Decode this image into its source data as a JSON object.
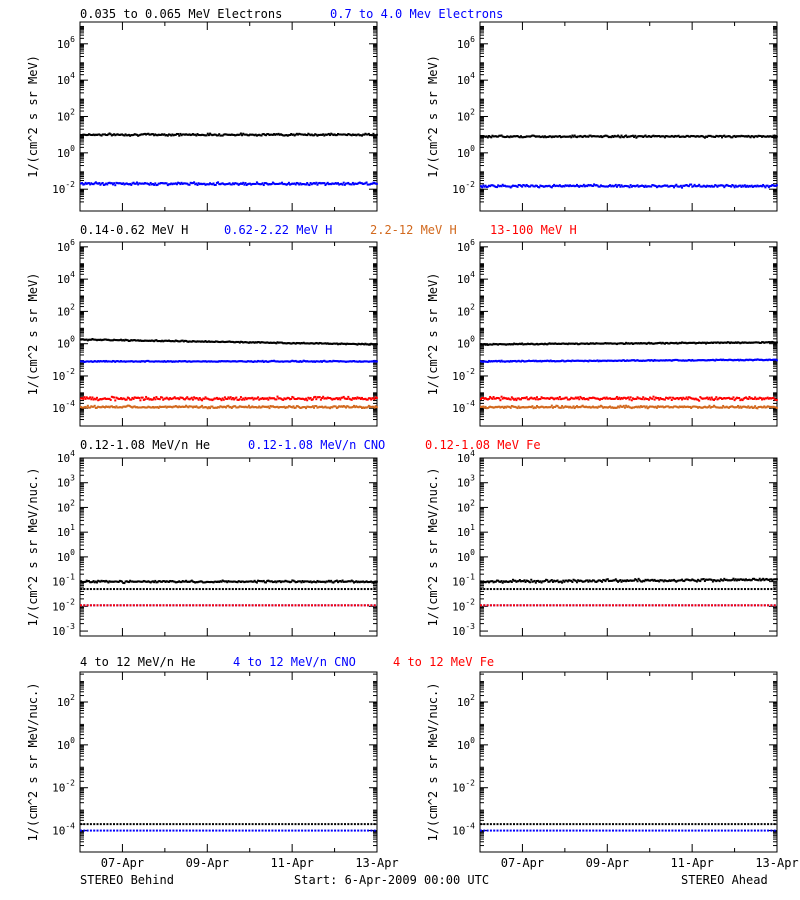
{
  "colors": {
    "black": "#000000",
    "blue": "#0000ff",
    "red": "#ff0000",
    "tan": "#d2691e"
  },
  "footer": {
    "left": "STEREO Behind",
    "center": "Start:  6-Apr-2009 00:00 UTC",
    "right": "STEREO Ahead"
  },
  "chart_data": [
    {
      "type": "scatter",
      "row": 1,
      "legend": [
        {
          "text": "0.035 to 0.065 MeV Electrons",
          "color": "#000000"
        },
        {
          "text": "0.7 to 4.0 Mev Electrons",
          "color": "#0000ff"
        }
      ],
      "ylabel": "1/(cm^2 s sr MeV)",
      "y_scale": "log",
      "y_ticks": [
        -2,
        0,
        2,
        4,
        6
      ],
      "ylim": [
        -3.2,
        7.2
      ],
      "x_ticks": [
        "07-Apr",
        "09-Apr",
        "11-Apr",
        "13-Apr"
      ],
      "x_days": [
        1,
        3,
        5,
        7
      ],
      "xlim_days": [
        0,
        7
      ],
      "series": {
        "behind": [
          {
            "color": "#000000",
            "start": 10.0,
            "end": 10.0,
            "spread": 0.08
          },
          {
            "color": "#0000ff",
            "start": 0.02,
            "end": 0.02,
            "spread": 0.1
          }
        ],
        "ahead": [
          {
            "color": "#000000",
            "start": 8.0,
            "end": 8.0,
            "spread": 0.08
          },
          {
            "color": "#0000ff",
            "start": 0.015,
            "end": 0.015,
            "spread": 0.1
          }
        ]
      }
    },
    {
      "type": "scatter",
      "row": 2,
      "legend": [
        {
          "text": "0.14-0.62 MeV H",
          "color": "#000000"
        },
        {
          "text": "0.62-2.22 MeV H",
          "color": "#0000ff"
        },
        {
          "text": "2.2-12 MeV H",
          "color": "#d2691e"
        },
        {
          "text": "13-100 MeV H",
          "color": "#ff0000"
        }
      ],
      "ylabel": "1/(cm^2 s sr MeV)",
      "y_scale": "log",
      "y_ticks": [
        -4,
        -2,
        0,
        2,
        4,
        6
      ],
      "ylim": [
        -5.1,
        6.3
      ],
      "x_ticks": [
        "07-Apr",
        "09-Apr",
        "11-Apr",
        "13-Apr"
      ],
      "x_days": [
        1,
        3,
        5,
        7
      ],
      "xlim_days": [
        0,
        7
      ],
      "series": {
        "behind": [
          {
            "color": "#000000",
            "start": 1.8,
            "end": 0.9,
            "spread": 0.05
          },
          {
            "color": "#0000ff",
            "start": 0.08,
            "end": 0.08,
            "spread": 0.05
          },
          {
            "color": "#ff0000",
            "start": 0.0004,
            "end": 0.0004,
            "spread": 0.15
          },
          {
            "color": "#d2691e",
            "start": 0.00012,
            "end": 0.00012,
            "spread": 0.1
          }
        ],
        "ahead": [
          {
            "color": "#000000",
            "start": 0.9,
            "end": 1.2,
            "spread": 0.05
          },
          {
            "color": "#0000ff",
            "start": 0.08,
            "end": 0.1,
            "spread": 0.05
          },
          {
            "color": "#ff0000",
            "start": 0.0004,
            "end": 0.0004,
            "spread": 0.15
          },
          {
            "color": "#d2691e",
            "start": 0.00012,
            "end": 0.00012,
            "spread": 0.1
          }
        ]
      }
    },
    {
      "type": "scatter",
      "row": 3,
      "legend": [
        {
          "text": "0.12-1.08 MeV/n He",
          "color": "#000000"
        },
        {
          "text": "0.12-1.08 MeV/n CNO",
          "color": "#0000ff"
        },
        {
          "text": "0.12-1.08 MeV Fe",
          "color": "#ff0000"
        }
      ],
      "ylabel": "1/(cm^2 s sr MeV/nuc.)",
      "y_scale": "log",
      "y_ticks": [
        -3,
        -2,
        -1,
        0,
        1,
        2,
        3,
        4
      ],
      "ylim": [
        -3.2,
        4.0
      ],
      "x_ticks": [
        "07-Apr",
        "09-Apr",
        "11-Apr",
        "13-Apr"
      ],
      "x_days": [
        1,
        3,
        5,
        7
      ],
      "xlim_days": [
        0,
        7
      ],
      "series": {
        "behind": [
          {
            "color": "#000000",
            "start": 0.1,
            "end": 0.1,
            "spread": 0.06
          },
          {
            "color": "#000000",
            "start": 0.05,
            "end": 0.05,
            "spread": 0.0
          },
          {
            "color": "#0000ff",
            "start": 0.011,
            "end": 0.011,
            "spread": 0.0
          },
          {
            "color": "#ff0000",
            "start": 0.011,
            "end": 0.011,
            "spread": 0.0
          }
        ],
        "ahead": [
          {
            "color": "#000000",
            "start": 0.1,
            "end": 0.12,
            "spread": 0.08
          },
          {
            "color": "#000000",
            "start": 0.05,
            "end": 0.05,
            "spread": 0.0
          },
          {
            "color": "#0000ff",
            "start": 0.011,
            "end": 0.011,
            "spread": 0.0
          },
          {
            "color": "#ff0000",
            "start": 0.011,
            "end": 0.011,
            "spread": 0.0
          }
        ]
      }
    },
    {
      "type": "scatter",
      "row": 4,
      "legend": [
        {
          "text": "4 to 12 MeV/n He",
          "color": "#000000"
        },
        {
          "text": "4 to 12 MeV/n CNO",
          "color": "#0000ff"
        },
        {
          "text": "4 to 12 MeV Fe",
          "color": "#ff0000"
        }
      ],
      "ylabel": "1/(cm^2 s sr MeV/nuc.)",
      "y_scale": "log",
      "y_ticks": [
        -4,
        -2,
        0,
        2
      ],
      "ylim": [
        -5.0,
        3.4
      ],
      "x_ticks": [
        "07-Apr",
        "09-Apr",
        "11-Apr",
        "13-Apr"
      ],
      "x_days": [
        1,
        3,
        5,
        7
      ],
      "xlim_days": [
        0,
        7
      ],
      "series": {
        "behind": [
          {
            "color": "#0000ff",
            "start": 0.0001,
            "end": 0.0001,
            "spread": 0.0
          },
          {
            "color": "#000000",
            "start": 0.0002,
            "end": 0.0002,
            "spread": 0.0
          }
        ],
        "ahead": [
          {
            "color": "#0000ff",
            "start": 0.0001,
            "end": 0.0001,
            "spread": 0.0
          },
          {
            "color": "#000000",
            "start": 0.0002,
            "end": 0.0002,
            "spread": 0.0
          }
        ]
      }
    }
  ]
}
